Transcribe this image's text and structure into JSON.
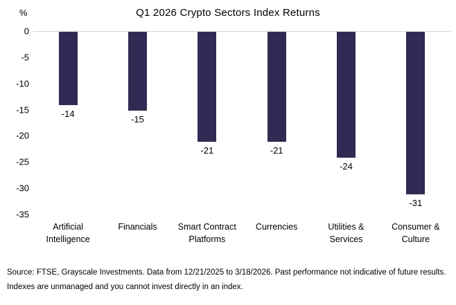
{
  "chart_data": {
    "type": "bar",
    "title": "Q1 2026 Crypto Sectors Index Returns",
    "ylabel": "%",
    "xlabel": "",
    "categories": [
      "Artificial Intelligence",
      "Financials",
      "Smart Contract Platforms",
      "Currencies",
      "Utilities & Services",
      "Consumer & Culture"
    ],
    "values": [
      -14,
      -15,
      -21,
      -21,
      -24,
      -31
    ],
    "ylim": [
      -35,
      0
    ],
    "yticks": [
      0,
      -5,
      -10,
      -15,
      -20,
      -25,
      -30,
      -35
    ],
    "bar_color": "#322a54",
    "axis_line_color": "#d6d6d6",
    "grid": false,
    "legend": false,
    "data_labels": true
  },
  "footer": {
    "line1": "Source: FTSE, Grayscale Investments. Data from 12/21/2025 to 3/18/2026. Past performance not indicative of future results.",
    "line2": "Indexes are unmanaged and you cannot invest directly in an index."
  }
}
